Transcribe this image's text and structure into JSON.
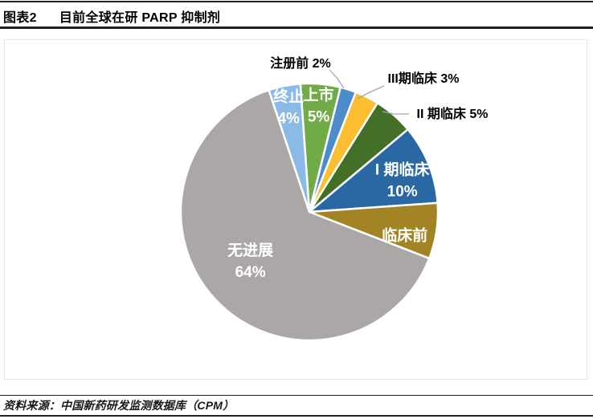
{
  "header": {
    "tag": "图表2",
    "title": "目前全球在研 PARP 抑制剂"
  },
  "source": {
    "text": "资料来源：中国新药研发监测数据库（CPM）"
  },
  "chart_data": {
    "type": "pie",
    "title": "目前全球在研 PARP 抑制剂",
    "unit": "%",
    "total": 100,
    "direction": "clockwise",
    "start_angle_deg": -4,
    "leader_line_color": "#a6a6a6",
    "slice_gap_color": "#ffffff",
    "slices": [
      {
        "label": "上市",
        "value": 5,
        "display": "5%",
        "color": "#6FAC47",
        "label_style": "inside"
      },
      {
        "label": "注册前",
        "value": 2,
        "display": "2%",
        "color": "#4D8CCB",
        "label_style": "callout",
        "callout_text": "注册前 2%"
      },
      {
        "label": "III期临床",
        "value": 3,
        "display": "3%",
        "color": "#FBBE31",
        "label_style": "callout",
        "callout_text": "III期临床 3%"
      },
      {
        "label": "II期临床",
        "value": 5,
        "display": "5%",
        "color": "#446F26",
        "label_style": "callout",
        "callout_text": "II 期临床 5%"
      },
      {
        "label": "I 期临床",
        "value": 10,
        "display": "10%",
        "color": "#2A68A4",
        "label_style": "inside"
      },
      {
        "label": "临床前",
        "value": 7,
        "display": "7%",
        "color": "#A28425",
        "label_style": "inside"
      },
      {
        "label": "无进展",
        "value": 64,
        "display": "64%",
        "color": "#ABA7A7",
        "label_style": "inside"
      },
      {
        "label": "终止",
        "value": 4,
        "display": "4%",
        "color": "#8CBAE6",
        "label_style": "inside"
      }
    ]
  }
}
